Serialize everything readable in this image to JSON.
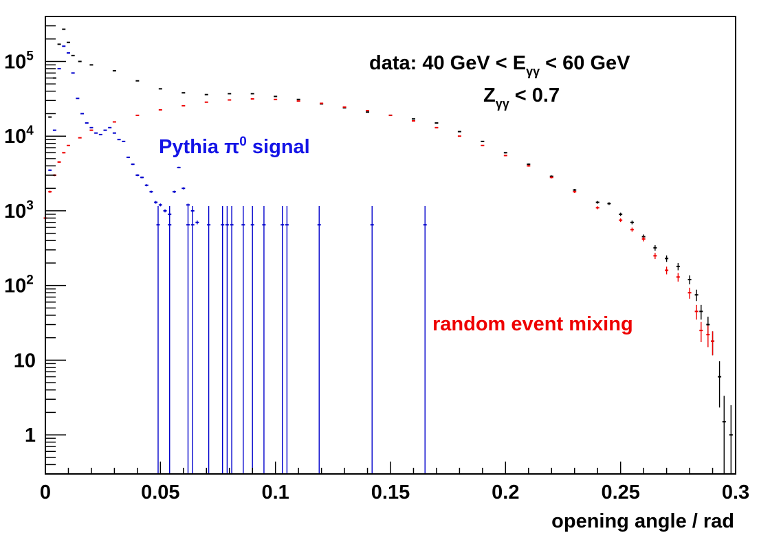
{
  "chart_data": {
    "type": "scatter",
    "xlabel": "opening angle / rad",
    "x_ticks": [
      "0",
      "0.05",
      "0.1",
      "0.15",
      "0.2",
      "0.25",
      "0.3"
    ],
    "xlim": [
      0,
      0.3
    ],
    "ylim": [
      0.3,
      400000
    ],
    "y_scale": "log",
    "y_ticks": [
      {
        "value": 1,
        "mant": "1",
        "exp": ""
      },
      {
        "value": 10,
        "mant": "10",
        "exp": ""
      },
      {
        "value": 100,
        "mant": "10",
        "exp": "2"
      },
      {
        "value": 1000,
        "mant": "10",
        "exp": "3"
      },
      {
        "value": 10000,
        "mant": "10",
        "exp": "4"
      },
      {
        "value": 100000,
        "mant": "10",
        "exp": "5"
      }
    ],
    "annotations": {
      "data_line1": "data: 40 GeV < E",
      "data_line1_sub": "γγ",
      "data_line1_end": " < 60 GeV",
      "data_line2": "Z",
      "data_line2_sub": "γγ",
      "data_line2_end": " < 0.7",
      "pythia_label": "Pythia π",
      "pythia_sup": "0",
      "pythia_end": " signal",
      "mixing_label": "random event mixing"
    },
    "series": [
      {
        "color": "#000000",
        "points": [
          [
            0.002,
            18000
          ],
          [
            0.004,
            60000
          ],
          [
            0.006,
            170000
          ],
          [
            0.008,
            270000
          ],
          [
            0.01,
            180000
          ],
          [
            0.012,
            120000
          ],
          [
            0.015,
            100000
          ],
          [
            0.02,
            90000
          ],
          [
            0.03,
            75000
          ],
          [
            0.04,
            55000
          ],
          [
            0.05,
            43000
          ],
          [
            0.06,
            38000
          ],
          [
            0.07,
            36000
          ],
          [
            0.08,
            37000
          ],
          [
            0.09,
            37000
          ],
          [
            0.1,
            34000
          ],
          [
            0.11,
            31000
          ],
          [
            0.12,
            27000
          ],
          [
            0.13,
            24000
          ],
          [
            0.14,
            21000
          ],
          [
            0.15,
            19000
          ],
          [
            0.16,
            17000
          ],
          [
            0.17,
            15000
          ],
          [
            0.18,
            11500
          ],
          [
            0.19,
            8500
          ],
          [
            0.2,
            6000
          ],
          [
            0.21,
            4200
          ],
          [
            0.22,
            2900
          ],
          [
            0.23,
            1900
          ],
          [
            0.24,
            1300
          ],
          [
            0.245,
            1250
          ],
          [
            0.25,
            900
          ],
          [
            0.255,
            700
          ],
          [
            0.26,
            450
          ],
          [
            0.265,
            320
          ],
          [
            0.27,
            230
          ],
          [
            0.275,
            180
          ],
          [
            0.28,
            120
          ],
          [
            0.283,
            75
          ],
          [
            0.285,
            45
          ],
          [
            0.288,
            30
          ],
          [
            0.29,
            18
          ],
          [
            0.293,
            6
          ],
          [
            0.295,
            1.5
          ],
          [
            0.298,
            1
          ]
        ]
      },
      {
        "color": "#ee0000",
        "points": [
          [
            0,
            800
          ],
          [
            0.002,
            1800
          ],
          [
            0.004,
            3000
          ],
          [
            0.006,
            4500
          ],
          [
            0.008,
            6000
          ],
          [
            0.01,
            7500
          ],
          [
            0.015,
            9500
          ],
          [
            0.02,
            12000
          ],
          [
            0.03,
            15500
          ],
          [
            0.04,
            19000
          ],
          [
            0.05,
            22500
          ],
          [
            0.06,
            25500
          ],
          [
            0.07,
            28500
          ],
          [
            0.08,
            30500
          ],
          [
            0.09,
            31500
          ],
          [
            0.1,
            31000
          ],
          [
            0.11,
            29500
          ],
          [
            0.12,
            27500
          ],
          [
            0.13,
            24500
          ],
          [
            0.14,
            22000
          ],
          [
            0.15,
            19000
          ],
          [
            0.16,
            16000
          ],
          [
            0.17,
            13000
          ],
          [
            0.18,
            10000
          ],
          [
            0.19,
            7500
          ],
          [
            0.2,
            5500
          ],
          [
            0.21,
            4000
          ],
          [
            0.22,
            2800
          ],
          [
            0.23,
            1800
          ],
          [
            0.24,
            1100
          ],
          [
            0.25,
            750
          ],
          [
            0.255,
            560
          ],
          [
            0.26,
            420
          ],
          [
            0.265,
            250
          ],
          [
            0.27,
            160
          ],
          [
            0.275,
            130
          ],
          [
            0.28,
            80
          ],
          [
            0.283,
            45
          ],
          [
            0.285,
            25
          ],
          [
            0.288,
            22
          ],
          [
            0.29,
            18
          ]
        ]
      },
      {
        "color": "#0000cc",
        "points": [
          [
            0.002,
            3500
          ],
          [
            0.004,
            12000
          ],
          [
            0.006,
            80000
          ],
          [
            0.008,
            160000
          ],
          [
            0.01,
            130000
          ],
          [
            0.012,
            70000
          ],
          [
            0.014,
            32000
          ],
          [
            0.016,
            20000
          ],
          [
            0.018,
            15000
          ],
          [
            0.02,
            13000
          ],
          [
            0.022,
            11000
          ],
          [
            0.024,
            10500
          ],
          [
            0.026,
            12000
          ],
          [
            0.028,
            13000
          ],
          [
            0.03,
            11000
          ],
          [
            0.032,
            9000
          ],
          [
            0.034,
            8500
          ],
          [
            0.036,
            5200
          ],
          [
            0.038,
            4200
          ],
          [
            0.04,
            3000
          ],
          [
            0.042,
            2800
          ],
          [
            0.044,
            2200
          ],
          [
            0.046,
            1800
          ],
          [
            0.048,
            1300
          ],
          [
            0.05,
            1200
          ],
          [
            0.052,
            1000
          ],
          [
            0.054,
            900
          ],
          [
            0.056,
            1800
          ],
          [
            0.058,
            3800
          ],
          [
            0.06,
            2000
          ],
          [
            0.062,
            1200
          ],
          [
            0.064,
            1000
          ],
          [
            0.066,
            700
          ]
        ]
      }
    ],
    "single_counts": {
      "color": "#0000cc",
      "value": 650,
      "x": [
        0.049,
        0.054,
        0.062,
        0.064,
        0.071,
        0.077,
        0.079,
        0.081,
        0.086,
        0.09,
        0.095,
        0.103,
        0.105,
        0.119,
        0.142,
        0.165
      ]
    }
  }
}
